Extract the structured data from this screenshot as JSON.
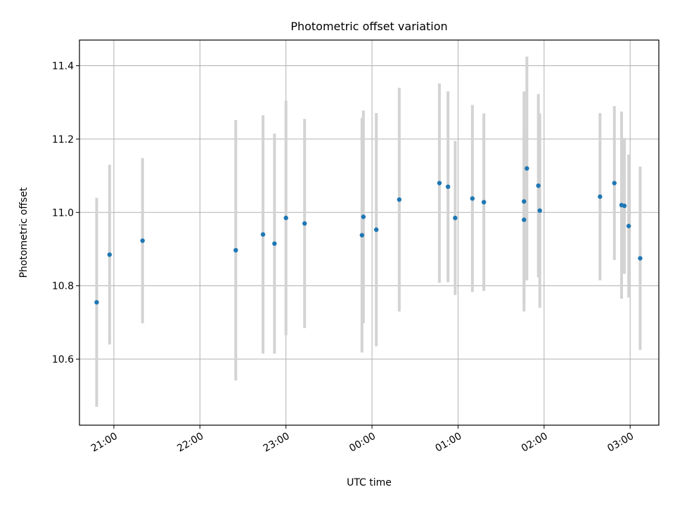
{
  "chart_data": {
    "type": "scatter",
    "title": "Photometric offset variation",
    "xlabel": "UTC time",
    "ylabel": "Photometric offset",
    "xlim": [
      "20:36",
      "03:20"
    ],
    "ylim": [
      10.42,
      11.47
    ],
    "x_ticks": [
      "21:00",
      "22:00",
      "23:00",
      "00:00",
      "01:00",
      "02:00",
      "03:00"
    ],
    "y_ticks": [
      10.6,
      10.8,
      11.0,
      11.2,
      11.4
    ],
    "grid": true,
    "legend": "none",
    "marker_color": "#1f77b4",
    "errorbar_color": "#d3d3d3",
    "points": [
      {
        "t": "20:48",
        "y": 10.755,
        "err": 0.285
      },
      {
        "t": "20:57",
        "y": 10.885,
        "err": 0.245
      },
      {
        "t": "21:20",
        "y": 10.923,
        "err": 0.225
      },
      {
        "t": "22:25",
        "y": 10.897,
        "err": 0.355
      },
      {
        "t": "22:44",
        "y": 10.94,
        "err": 0.325
      },
      {
        "t": "22:52",
        "y": 10.915,
        "err": 0.3
      },
      {
        "t": "23:00",
        "y": 10.985,
        "err": 0.32
      },
      {
        "t": "23:13",
        "y": 10.97,
        "err": 0.285
      },
      {
        "t": "23:53",
        "y": 10.938,
        "err": 0.32
      },
      {
        "t": "23:54",
        "y": 10.988,
        "err": 0.29
      },
      {
        "t": "00:03",
        "y": 10.953,
        "err": 0.318
      },
      {
        "t": "00:19",
        "y": 11.035,
        "err": 0.305
      },
      {
        "t": "00:47",
        "y": 11.08,
        "err": 0.272
      },
      {
        "t": "00:53",
        "y": 11.07,
        "err": 0.26
      },
      {
        "t": "00:58",
        "y": 10.985,
        "err": 0.21
      },
      {
        "t": "01:10",
        "y": 11.038,
        "err": 0.255
      },
      {
        "t": "01:18",
        "y": 11.028,
        "err": 0.242
      },
      {
        "t": "01:46",
        "y": 11.03,
        "err": 0.3
      },
      {
        "t": "01:46",
        "y": 10.98,
        "err": 0.23
      },
      {
        "t": "01:48",
        "y": 11.12,
        "err": 0.305
      },
      {
        "t": "01:56",
        "y": 11.073,
        "err": 0.25
      },
      {
        "t": "01:57",
        "y": 11.005,
        "err": 0.265
      },
      {
        "t": "02:39",
        "y": 11.043,
        "err": 0.228
      },
      {
        "t": "02:49",
        "y": 11.08,
        "err": 0.21
      },
      {
        "t": "02:54",
        "y": 11.02,
        "err": 0.255
      },
      {
        "t": "02:56",
        "y": 11.018,
        "err": 0.185
      },
      {
        "t": "02:59",
        "y": 10.963,
        "err": 0.195
      },
      {
        "t": "03:07",
        "y": 10.875,
        "err": 0.25
      }
    ]
  }
}
